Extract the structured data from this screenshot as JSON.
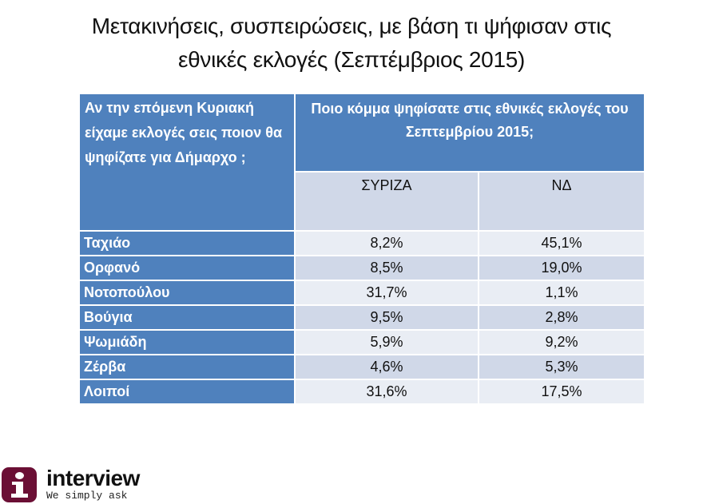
{
  "title": {
    "line1": "Μετακινήσεις, συσπειρώσεις, με βάση τι ψήφισαν στις",
    "line2": "εθνικές εκλογές (Σεπτέμβριος 2015)"
  },
  "table": {
    "row_header": "Αν την επόμενη Κυριακή είχαμε εκλογές σεις ποιον θα ψηφίζατε για Δήμαρχο ;",
    "column_group_header": "Ποιο κόμμα ψηφίσατε στις εθνικές εκλογές του Σεπτεμβρίου 2015;",
    "columns": [
      "ΣΥΡΙΖΑ",
      "ΝΔ"
    ],
    "rows": [
      {
        "label": "Ταχιάο",
        "values": [
          "8,2%",
          "45,1%"
        ]
      },
      {
        "label": "Ορφανό",
        "values": [
          "8,5%",
          "19,0%"
        ]
      },
      {
        "label": "Νοτοπούλου",
        "values": [
          "31,7%",
          "1,1%"
        ]
      },
      {
        "label": "Βούγια",
        "values": [
          "9,5%",
          "2,8%"
        ]
      },
      {
        "label": "Ψωμιάδη",
        "values": [
          "5,9%",
          "9,2%"
        ]
      },
      {
        "label": "Ζέρβα",
        "values": [
          "4,6%",
          "5,3%"
        ]
      },
      {
        "label": "Λοιποί",
        "values": [
          "31,6%",
          "17,5%"
        ]
      }
    ]
  },
  "logo": {
    "icon": "info-i-icon",
    "brand": "interview",
    "tagline": "We simply ask"
  },
  "colors": {
    "header_blue": "#4f81bd",
    "row_light": "#e9edf4",
    "row_dark": "#d0d8e8",
    "logo_maroon": "#6b0f35"
  }
}
